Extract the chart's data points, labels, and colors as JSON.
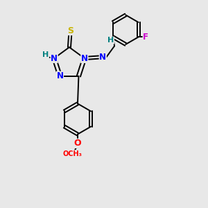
{
  "bg_color": "#e8e8e8",
  "atom_colors": {
    "N": "#0000ff",
    "S": "#c8b400",
    "O": "#ff0000",
    "F": "#cc00cc",
    "C": "#000000",
    "H": "#008080"
  },
  "bond_color": "#000000"
}
